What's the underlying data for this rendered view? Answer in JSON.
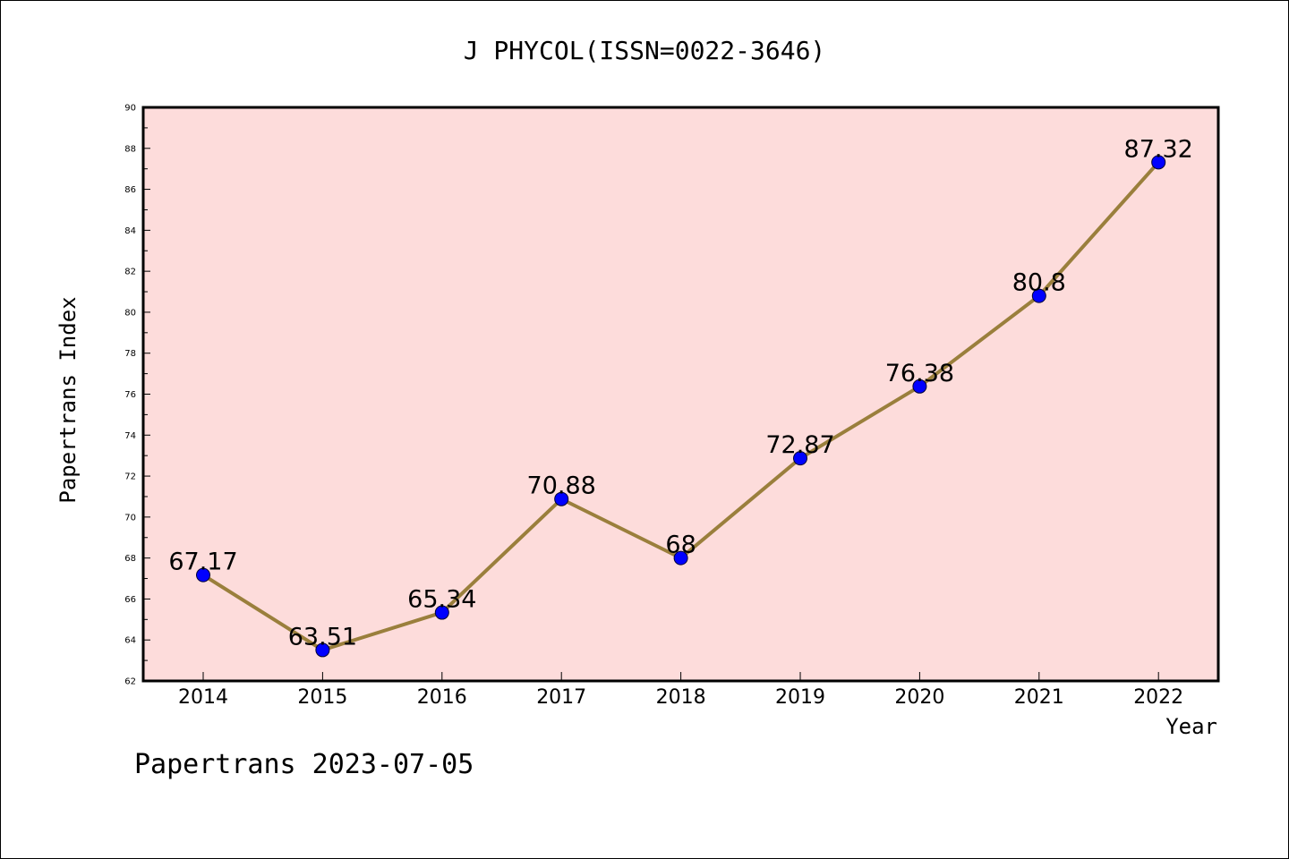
{
  "footer_text": "Papertrans 2023-07-05",
  "chart_data": {
    "type": "line",
    "title": "J PHYCOL(ISSN=0022-3646)",
    "xlabel": "Year",
    "ylabel": "Papertrans Index",
    "categories": [
      "2014",
      "2015",
      "2016",
      "2017",
      "2018",
      "2019",
      "2020",
      "2021",
      "2022"
    ],
    "series": [
      {
        "values": [
          67.17,
          63.51,
          65.34,
          70.88,
          68,
          72.87,
          76.38,
          80.8,
          87.32
        ],
        "labels": [
          "67.17",
          "63.51",
          "65.34",
          "70.88",
          "68",
          "72.87",
          "76.38",
          "80.8",
          "87.32"
        ]
      }
    ],
    "ylim": [
      62,
      90
    ],
    "yticks": [
      62,
      64,
      66,
      68,
      70,
      72,
      74,
      76,
      78,
      80,
      82,
      84,
      86,
      88,
      90
    ],
    "grid": false,
    "colors": {
      "plot_background": "#fddcdb",
      "line": "#9a7f3c",
      "marker": "#0000ff"
    }
  }
}
